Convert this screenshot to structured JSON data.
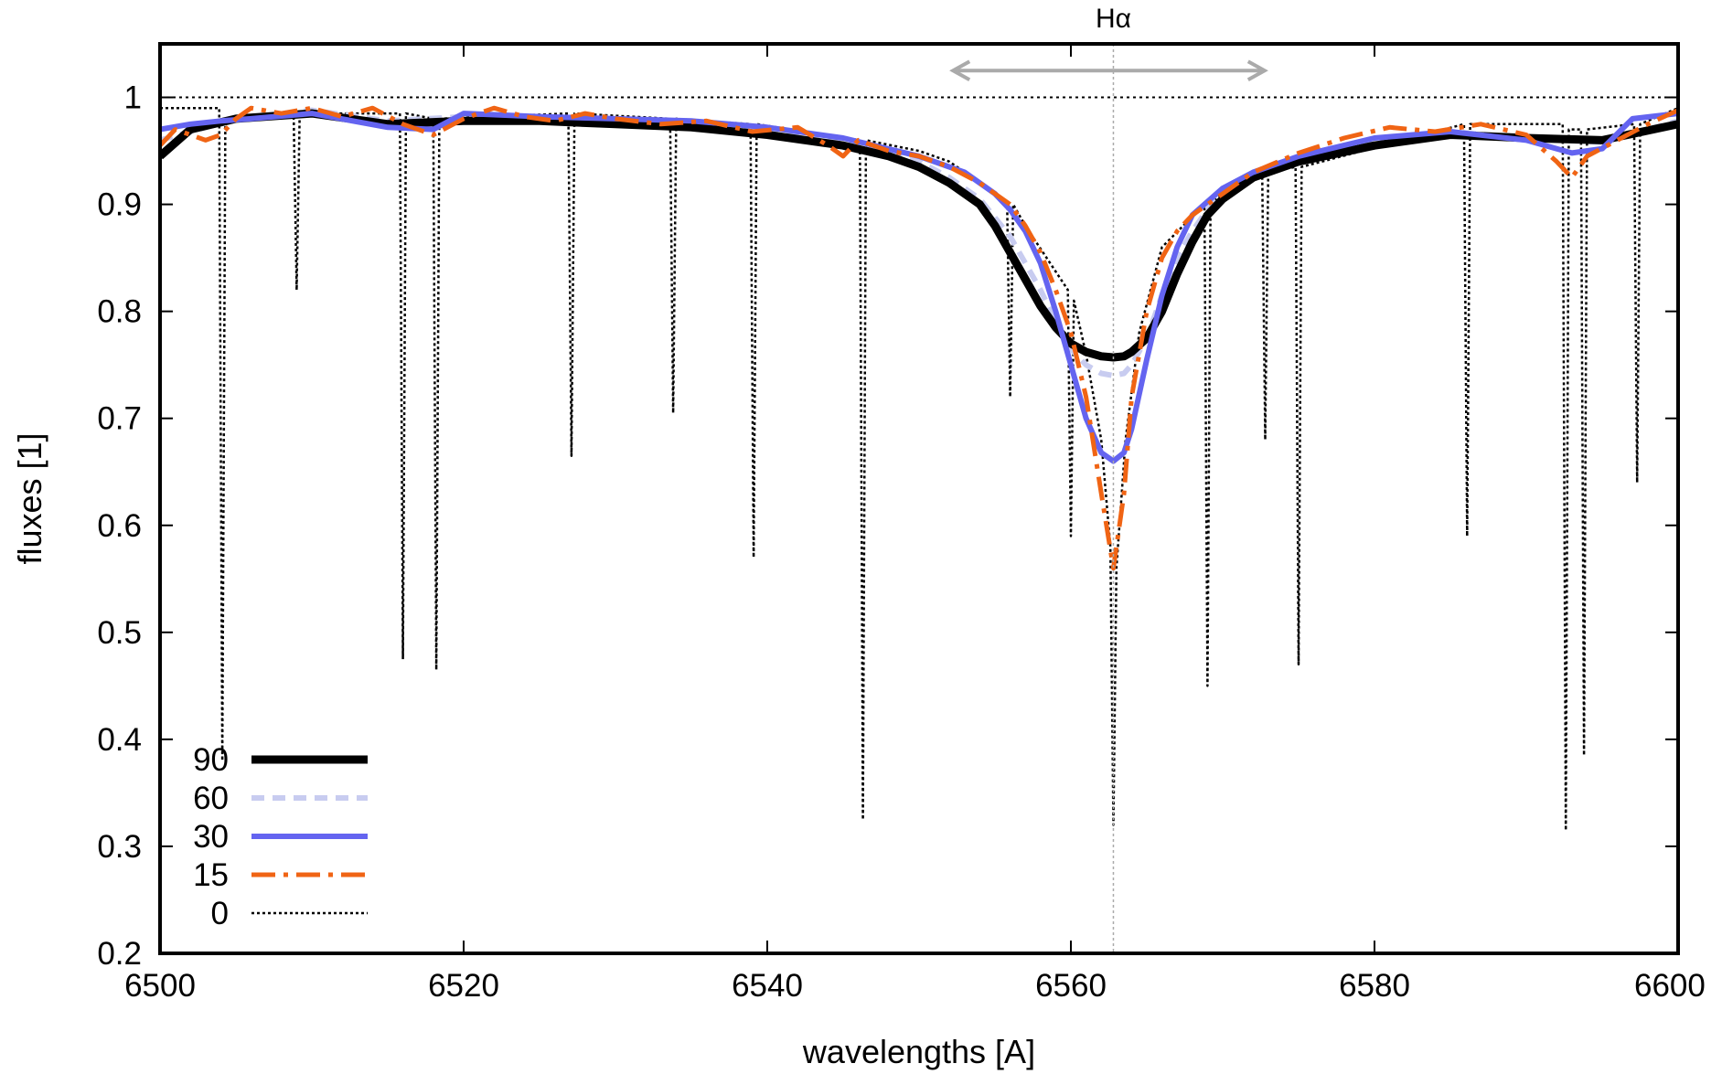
{
  "chart_data": {
    "type": "line",
    "title": "",
    "xlabel": "wavelengths [A]",
    "ylabel": "fluxes [1]",
    "xlim": [
      6500,
      6600
    ],
    "ylim": [
      0.2,
      1.05
    ],
    "x_ticks": [
      6500,
      6520,
      6540,
      6560,
      6580,
      6600
    ],
    "y_ticks": [
      0.2,
      0.3,
      0.4,
      0.5,
      0.6,
      0.7,
      0.8,
      0.9,
      1
    ],
    "x_tick_labels": [
      "6500",
      "6520",
      "6540",
      "6560",
      "6580",
      "6600"
    ],
    "y_tick_labels": [
      "0.2",
      "0.3",
      "0.4",
      "0.5",
      "0.6",
      "0.7",
      "0.8",
      "0.9",
      "1"
    ],
    "grid": false,
    "legend_position": "bottom-left",
    "reference_line": {
      "x": 6562.8,
      "label": "Hα",
      "style": "dotted",
      "color": "#aaaaaa"
    },
    "continuum_line": {
      "y": 1.0,
      "style": "dotted",
      "color": "#000000"
    },
    "range_arrow": {
      "x_start": 6552,
      "x_end": 6573,
      "y": 1.025,
      "color": "#aaaaaa"
    },
    "series": [
      {
        "name": "90",
        "color": "#000000",
        "style": "solid",
        "width": 9,
        "x": [
          6500,
          6502,
          6505,
          6510,
          6515,
          6520,
          6525,
          6530,
          6535,
          6540,
          6545,
          6548,
          6550,
          6552,
          6554,
          6555,
          6556,
          6557,
          6558,
          6559,
          6560,
          6561,
          6562,
          6562.8,
          6563.5,
          6564,
          6565,
          6566,
          6567,
          6568,
          6569,
          6570,
          6572,
          6575,
          6580,
          6585,
          6590,
          6595,
          6600
        ],
        "y": [
          0.945,
          0.97,
          0.98,
          0.985,
          0.975,
          0.978,
          0.978,
          0.975,
          0.972,
          0.965,
          0.955,
          0.945,
          0.935,
          0.92,
          0.9,
          0.88,
          0.855,
          0.83,
          0.805,
          0.785,
          0.77,
          0.762,
          0.758,
          0.757,
          0.758,
          0.762,
          0.775,
          0.8,
          0.835,
          0.865,
          0.89,
          0.905,
          0.925,
          0.94,
          0.955,
          0.965,
          0.962,
          0.96,
          0.975
        ]
      },
      {
        "name": "60",
        "color": "#c8ccf0",
        "style": "dashed",
        "width": 6,
        "x": [
          6500,
          6505,
          6510,
          6515,
          6520,
          6525,
          6530,
          6535,
          6540,
          6545,
          6550,
          6552,
          6554,
          6556,
          6558,
          6559,
          6560,
          6561,
          6562,
          6562.8,
          6563.5,
          6564,
          6565,
          6566,
          6567,
          6568,
          6569,
          6570,
          6572,
          6575,
          6580,
          6585,
          6590,
          6595,
          6600
        ],
        "y": [
          0.96,
          0.98,
          0.988,
          0.978,
          0.982,
          0.98,
          0.978,
          0.974,
          0.968,
          0.958,
          0.94,
          0.925,
          0.905,
          0.87,
          0.82,
          0.79,
          0.765,
          0.75,
          0.742,
          0.74,
          0.742,
          0.75,
          0.775,
          0.815,
          0.85,
          0.875,
          0.895,
          0.91,
          0.928,
          0.942,
          0.958,
          0.968,
          0.962,
          0.958,
          0.978
        ]
      },
      {
        "name": "30",
        "color": "#6464f0",
        "style": "solid",
        "width": 6,
        "x": [
          6500,
          6502,
          6504,
          6506,
          6510,
          6515,
          6518,
          6520,
          6525,
          6530,
          6535,
          6540,
          6545,
          6550,
          6553,
          6555,
          6556,
          6557,
          6558,
          6559,
          6560,
          6561,
          6562,
          6562.8,
          6563.5,
          6564,
          6565,
          6566,
          6567,
          6568,
          6570,
          6572,
          6575,
          6580,
          6585,
          6590,
          6593,
          6595,
          6597,
          6600
        ],
        "y": [
          0.97,
          0.975,
          0.978,
          0.98,
          0.985,
          0.972,
          0.97,
          0.985,
          0.982,
          0.98,
          0.978,
          0.972,
          0.962,
          0.945,
          0.93,
          0.91,
          0.895,
          0.875,
          0.845,
          0.8,
          0.75,
          0.7,
          0.668,
          0.66,
          0.668,
          0.69,
          0.755,
          0.815,
          0.86,
          0.89,
          0.915,
          0.93,
          0.945,
          0.962,
          0.968,
          0.96,
          0.948,
          0.952,
          0.98,
          0.985
        ]
      },
      {
        "name": "15",
        "color": "#f06414",
        "style": "dashdot",
        "width": 5,
        "x": [
          6500,
          6501,
          6502,
          6503,
          6504,
          6505,
          6506,
          6508,
          6510,
          6512,
          6514,
          6516,
          6518,
          6520,
          6522,
          6524,
          6526,
          6528,
          6530,
          6533,
          6536,
          6539,
          6542,
          6544,
          6545,
          6546,
          6548,
          6550,
          6552,
          6554,
          6555,
          6556,
          6557,
          6558,
          6559,
          6560,
          6561,
          6562,
          6562.8,
          6563.5,
          6564,
          6565,
          6566,
          6567,
          6568,
          6570,
          6572,
          6575,
          6578,
          6581,
          6584,
          6587,
          6590,
          6592,
          6593,
          6594,
          6596,
          6598,
          6600
        ],
        "y": [
          0.955,
          0.97,
          0.965,
          0.96,
          0.965,
          0.98,
          0.99,
          0.985,
          0.99,
          0.982,
          0.99,
          0.975,
          0.965,
          0.98,
          0.99,
          0.982,
          0.978,
          0.985,
          0.98,
          0.975,
          0.978,
          0.968,
          0.972,
          0.955,
          0.945,
          0.96,
          0.95,
          0.945,
          0.935,
          0.92,
          0.91,
          0.9,
          0.88,
          0.855,
          0.82,
          0.78,
          0.72,
          0.63,
          0.56,
          0.63,
          0.72,
          0.8,
          0.85,
          0.875,
          0.89,
          0.91,
          0.93,
          0.948,
          0.962,
          0.972,
          0.968,
          0.975,
          0.965,
          0.94,
          0.925,
          0.945,
          0.96,
          0.975,
          0.988
        ]
      },
      {
        "name": "0",
        "color": "#000000",
        "style": "dotted",
        "width": 2.5,
        "x": [
          6500,
          6503.9,
          6504.1,
          6504.3,
          6508.8,
          6509,
          6509.2,
          6515.8,
          6516,
          6516.2,
          6518,
          6518.2,
          6518.4,
          6526.9,
          6527.1,
          6527.3,
          6533.6,
          6533.8,
          6534,
          6538.9,
          6539.1,
          6539.3,
          6546.1,
          6546.3,
          6546.5,
          6550,
          6552,
          6554,
          6555.8,
          6556,
          6556.2,
          6557,
          6559.8,
          6560,
          6560.2,
          6561,
          6562,
          6562.6,
          6562.8,
          6563,
          6563.6,
          6564.5,
          6566,
          6568.8,
          6569,
          6569.2,
          6570,
          6572.6,
          6572.8,
          6573,
          6574.8,
          6575,
          6575.2,
          6585.9,
          6586.1,
          6586.3,
          6592.4,
          6592.6,
          6592.8,
          6593.6,
          6593.8,
          6594,
          6597.1,
          6597.3,
          6597.5,
          6600
        ],
        "y": [
          0.99,
          0.99,
          0.38,
          0.98,
          0.985,
          0.82,
          0.985,
          0.985,
          0.475,
          0.985,
          0.98,
          0.465,
          0.98,
          0.985,
          0.665,
          0.985,
          0.98,
          0.705,
          0.98,
          0.975,
          0.57,
          0.975,
          0.96,
          0.325,
          0.96,
          0.95,
          0.94,
          0.92,
          0.9,
          0.72,
          0.9,
          0.88,
          0.82,
          0.59,
          0.81,
          0.76,
          0.68,
          0.58,
          0.32,
          0.56,
          0.68,
          0.78,
          0.86,
          0.9,
          0.45,
          0.9,
          0.91,
          0.93,
          0.68,
          0.93,
          0.935,
          0.47,
          0.935,
          0.975,
          0.59,
          0.975,
          0.975,
          0.315,
          0.97,
          0.97,
          0.385,
          0.97,
          0.975,
          0.64,
          0.975,
          0.99
        ]
      }
    ]
  }
}
